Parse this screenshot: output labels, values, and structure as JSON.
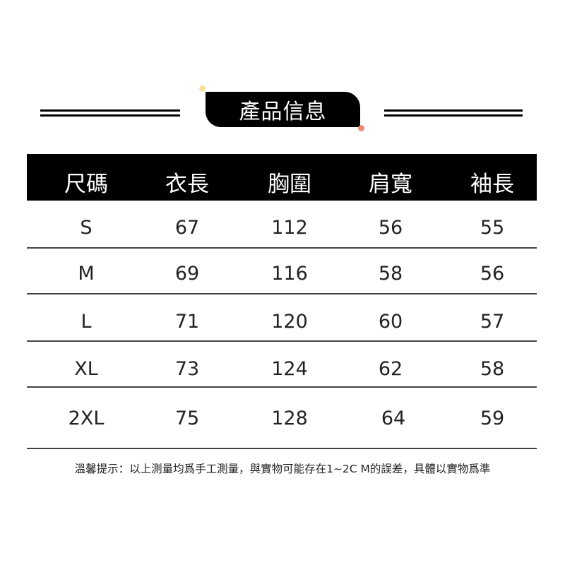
{
  "title": "產品信息",
  "colors": {
    "badge": "#000000",
    "dot_top": "#f9df9c",
    "dot_bottom": "#ee8a76"
  },
  "table": {
    "headers": [
      "尺碼",
      "衣長",
      "胸圍",
      "肩寬",
      "袖長"
    ],
    "rows": [
      [
        "S",
        "67",
        "112",
        "56",
        "55"
      ],
      [
        "M",
        "69",
        "116",
        "58",
        "56"
      ],
      [
        "L",
        "71",
        "120",
        "60",
        "57"
      ],
      [
        "XL",
        "73",
        "124",
        "62",
        "58"
      ],
      [
        "2XL",
        "75",
        "128",
        "64",
        "59"
      ]
    ]
  },
  "note": "溫馨提示：以上測量均爲手工測量，與實物可能存在1~2C M的誤差，具體以實物爲準"
}
